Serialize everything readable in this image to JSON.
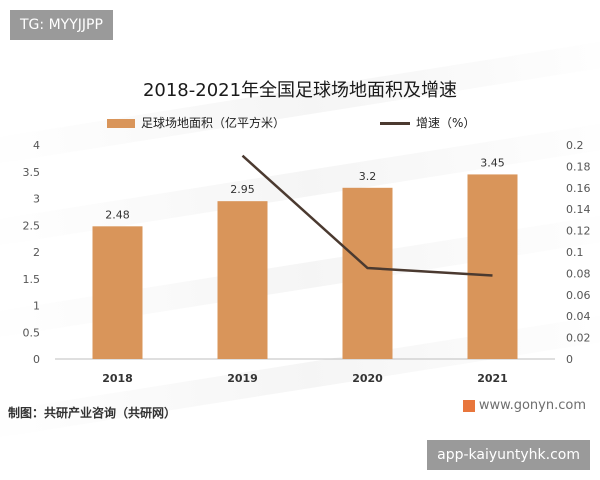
{
  "tags": {
    "top": "TG: MYYJJPP",
    "bottom": "app-kaiyuntyhk.com"
  },
  "chart_data": {
    "type": "bar",
    "title": "2018-2021年全国足球场地面积及增速",
    "categories": [
      "2018",
      "2019",
      "2020",
      "2021"
    ],
    "series": [
      {
        "name": "足球场地面积（亿平方米）",
        "type": "bar",
        "axis": "left",
        "values": [
          2.48,
          2.95,
          3.2,
          3.45
        ],
        "data_labels": [
          "2.48",
          "2.95",
          "3.2",
          "3.45"
        ],
        "color": "#D9955A"
      },
      {
        "name": "增速（%）",
        "type": "line",
        "axis": "right",
        "values": [
          null,
          0.19,
          0.085,
          0.078
        ],
        "color": "#4b3a30"
      }
    ],
    "y_left": {
      "range": [
        0,
        4
      ],
      "ticks": [
        "0",
        "0.5",
        "1",
        "1.5",
        "2",
        "2.5",
        "3",
        "3.5",
        "4"
      ]
    },
    "y_right": {
      "range": [
        0,
        0.2
      ],
      "ticks": [
        "0",
        "0.02",
        "0.04",
        "0.06",
        "0.08",
        "0.1",
        "0.12",
        "0.14",
        "0.16",
        "0.18",
        "0.2"
      ]
    },
    "legend_position": "top",
    "grid": false
  },
  "source": "制图：共研产业咨询（共研网）",
  "brand": "www.gonyn.com"
}
